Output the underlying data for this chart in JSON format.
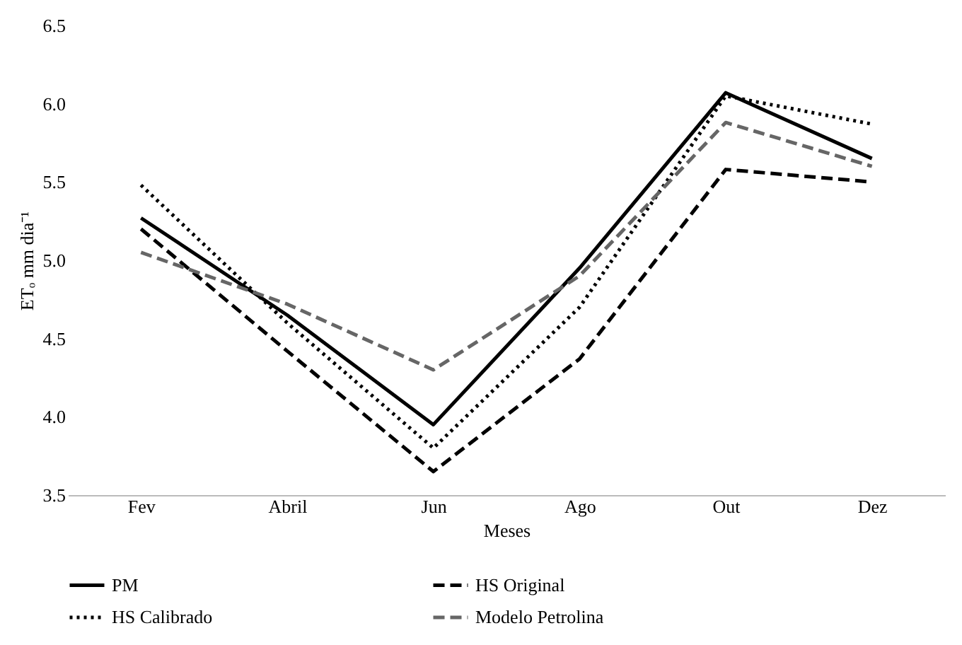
{
  "chart_data": {
    "type": "line",
    "xlabel": "Meses",
    "ylabel": "ETₒ mm dia⁻¹",
    "categories": [
      "Fev",
      "Abril",
      "Jun",
      "Ago",
      "Out",
      "Dez"
    ],
    "series": [
      {
        "name": "PM",
        "color": "#000000",
        "line_style": "solid",
        "values": [
          5.27,
          4.65,
          3.95,
          4.95,
          6.07,
          5.65
        ]
      },
      {
        "name": "HS Original",
        "color": "#000000",
        "line_style": "dashed",
        "values": [
          5.2,
          4.42,
          3.65,
          4.37,
          5.58,
          5.5
        ]
      },
      {
        "name": "HS Calibrado",
        "color": "#000000",
        "line_style": "dotted",
        "values": [
          5.48,
          4.6,
          3.8,
          4.7,
          6.05,
          5.87
        ]
      },
      {
        "name": "Modelo Petrolina",
        "color": "#666666",
        "line_style": "dashed",
        "values": [
          5.05,
          4.72,
          4.3,
          4.9,
          5.88,
          5.6
        ]
      }
    ],
    "ylim": [
      3.5,
      6.5
    ],
    "yticks": [
      3.5,
      {
        "value": 4,
        "label": "4.0"
      },
      4.5,
      {
        "value": 5,
        "label": "5.0"
      },
      5.5,
      {
        "value": 6,
        "label": "6.0"
      },
      6.5
    ],
    "grid": false,
    "legend": "bottom",
    "marker": "none"
  }
}
